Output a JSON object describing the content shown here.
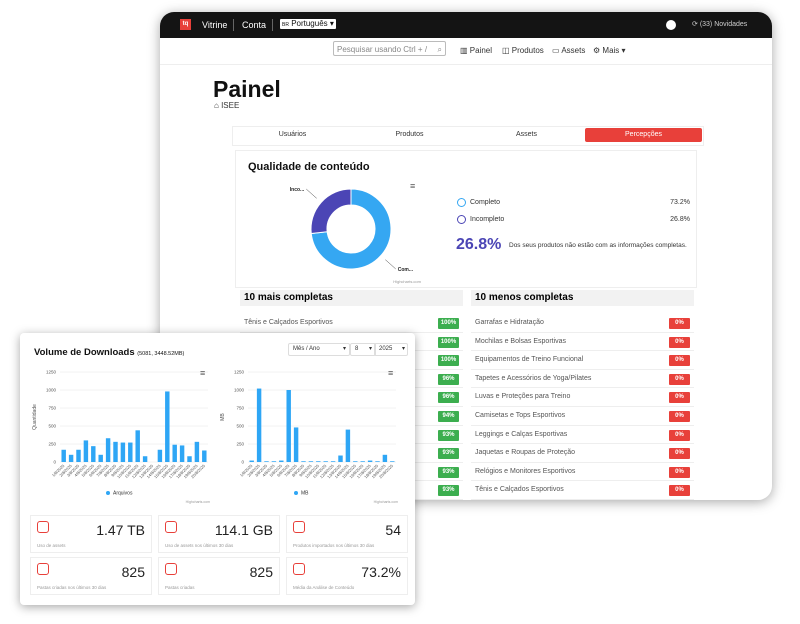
{
  "topbar": {
    "logo": "tq",
    "links": [
      "Vitrine",
      "Conta"
    ],
    "language_flag": "BR",
    "language": "Português",
    "updates": "(33) Novidades"
  },
  "nav": {
    "search_placeholder": "Pesquisar usando Ctrl + /",
    "links": [
      "Painel",
      "Produtos",
      "Assets",
      "Mais"
    ]
  },
  "page": {
    "title": "Painel",
    "breadcrumb": "ISEE"
  },
  "tabs": {
    "items": [
      "Usuários",
      "Produtos",
      "Assets",
      "Percepções"
    ],
    "active": 3
  },
  "quality": {
    "title": "Qualidade de conteúdo",
    "chart": {
      "type": "pie",
      "series": [
        {
          "name": "Completo",
          "value": 73.2,
          "value_label": "73.2%",
          "color": "#35a7f2",
          "point_label": "Com..."
        },
        {
          "name": "Incompleto",
          "value": 26.8,
          "value_label": "26.8%",
          "color": "#4b45b5",
          "point_label": "Inco..."
        }
      ],
      "credit": "Highcharts.com"
    },
    "highlight": "26.8%",
    "highlight_text": "Dos seus produtos não estão com as informações completas."
  },
  "top_list": {
    "title": "10 mais completas",
    "badge_color": "#3cae4f",
    "items": [
      {
        "name": "Tênis e Calçados Esportivos",
        "badge": "100%"
      },
      {
        "badge": "100%"
      },
      {
        "badge": "100%"
      },
      {
        "badge": "96%"
      },
      {
        "badge": "96%"
      },
      {
        "badge": "94%"
      },
      {
        "badge": "93%"
      },
      {
        "badge": "93%"
      },
      {
        "badge": "93%"
      },
      {
        "badge": "93%"
      }
    ]
  },
  "bottom_list": {
    "title": "10 menos completas",
    "badge_color": "#e8403a",
    "items": [
      {
        "name": "Garrafas e Hidratação",
        "badge": "0%"
      },
      {
        "name": "Mochilas e Bolsas Esportivas",
        "badge": "0%"
      },
      {
        "name": "Equipamentos de Treino Funcional",
        "badge": "0%"
      },
      {
        "name": "Tapetes e Acessórios de Yoga/Pilates",
        "badge": "0%"
      },
      {
        "name": "Luvas e Proteções para Treino",
        "badge": "0%"
      },
      {
        "name": "Camisetas e Tops Esportivos",
        "badge": "0%"
      },
      {
        "name": "Leggings e Calças Esportivas",
        "badge": "0%"
      },
      {
        "name": "Jaquetas e Roupas de Proteção",
        "badge": "0%"
      },
      {
        "name": "Relógios e Monitores Esportivos",
        "badge": "0%"
      },
      {
        "name": "Tênis e Calçados Esportivos",
        "badge": "0%"
      }
    ]
  },
  "downloads": {
    "title": "Volume de Downloads",
    "summary": "(5081, 3448.52MB)",
    "filters": [
      "Mês / Ano",
      "8",
      "2025"
    ],
    "charts": [
      {
        "type": "bar",
        "y_label": "Quantidade",
        "categories": [
          "1/8/2025",
          "2/8/2025",
          "3/8/2025",
          "4/8/2025",
          "5/8/2025",
          "6/8/2025",
          "7/8/2025",
          "8/8/2025",
          "9/8/2025",
          "10/8/2025",
          "11/8/2025",
          "12/8/2025",
          "13/8/2025",
          "14/8/2025",
          "15/8/2025",
          "16/8/2025",
          "17/8/2025",
          "18/8/2025",
          "19/8/2025",
          "20/8/2025"
        ],
        "series": [
          {
            "name": "Arquivos",
            "color": "#2ea6f5",
            "values": [
              170,
              100,
              170,
              300,
              220,
              100,
              330,
              280,
              270,
              270,
              440,
              80,
              0,
              170,
              980,
              240,
              230,
              80,
              280,
              160
            ]
          }
        ],
        "ylim": [
          0,
          1250
        ],
        "yticks": [
          0,
          250,
          500,
          750,
          1000,
          1250
        ],
        "credit": "Highcharts.com"
      },
      {
        "type": "bar",
        "y_label": "MB",
        "categories": [
          "1/8/2025",
          "2/8/2025",
          "3/8/2025",
          "4/8/2025",
          "5/8/2025",
          "6/8/2025",
          "7/8/2025",
          "8/8/2025",
          "9/8/2025",
          "10/8/2025",
          "11/8/2025",
          "12/8/2025",
          "13/8/2025",
          "14/8/2025",
          "15/8/2025",
          "16/8/2025",
          "17/8/2025",
          "18/8/2025",
          "19/8/2025",
          "20/8/2025"
        ],
        "series": [
          {
            "name": "MB",
            "color": "#2ea6f5",
            "values": [
              20,
              1020,
              10,
              10,
              20,
              1000,
              480,
              10,
              10,
              10,
              10,
              10,
              90,
              450,
              10,
              10,
              20,
              10,
              100,
              10
            ]
          }
        ],
        "ylim": [
          0,
          1250
        ],
        "yticks": [
          0,
          250,
          500,
          750,
          1000,
          1250
        ],
        "credit": "Highcharts.com"
      }
    ],
    "stats": [
      {
        "value": "1.47 TB",
        "label": "Uso de assets"
      },
      {
        "value": "114.1 GB",
        "label": "Uso de assets nos últimos 30 dias"
      },
      {
        "value": "54",
        "label": "Produtos importados nos últimos 30 dias"
      },
      {
        "value": "825",
        "label": "Pastas criadas nos últimos 30 dias"
      },
      {
        "value": "825",
        "label": "Pastas criadas"
      },
      {
        "value": "73.2%",
        "label": "Média da Análise de Conteúdo"
      }
    ]
  }
}
